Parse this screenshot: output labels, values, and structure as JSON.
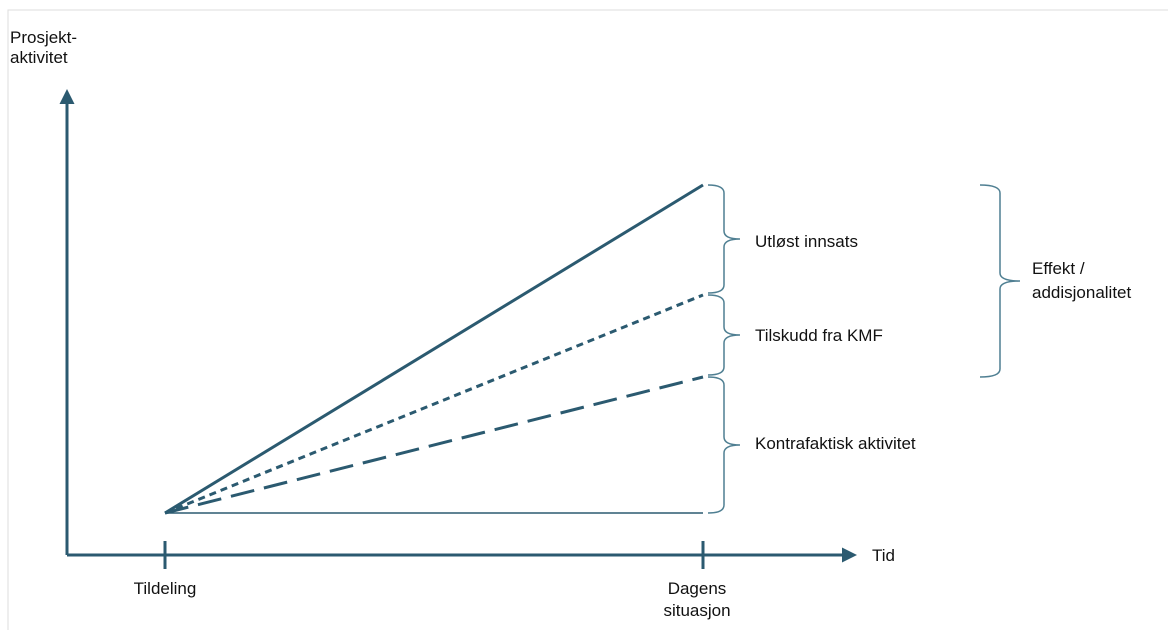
{
  "axes": {
    "y_label": [
      "Prosjekt-",
      "aktivitet"
    ],
    "x_label": "Tid"
  },
  "x_ticks": [
    {
      "label": [
        "Tildeling"
      ]
    },
    {
      "label": [
        "Dagens",
        "situasjon"
      ]
    }
  ],
  "segments": [
    {
      "label": "Utløst innsats"
    },
    {
      "label": "Tilskudd fra KMF"
    },
    {
      "label": "Kontrafaktisk aktivitet"
    }
  ],
  "group": {
    "label": [
      "Effekt /",
      "addisjonalitet"
    ]
  }
}
